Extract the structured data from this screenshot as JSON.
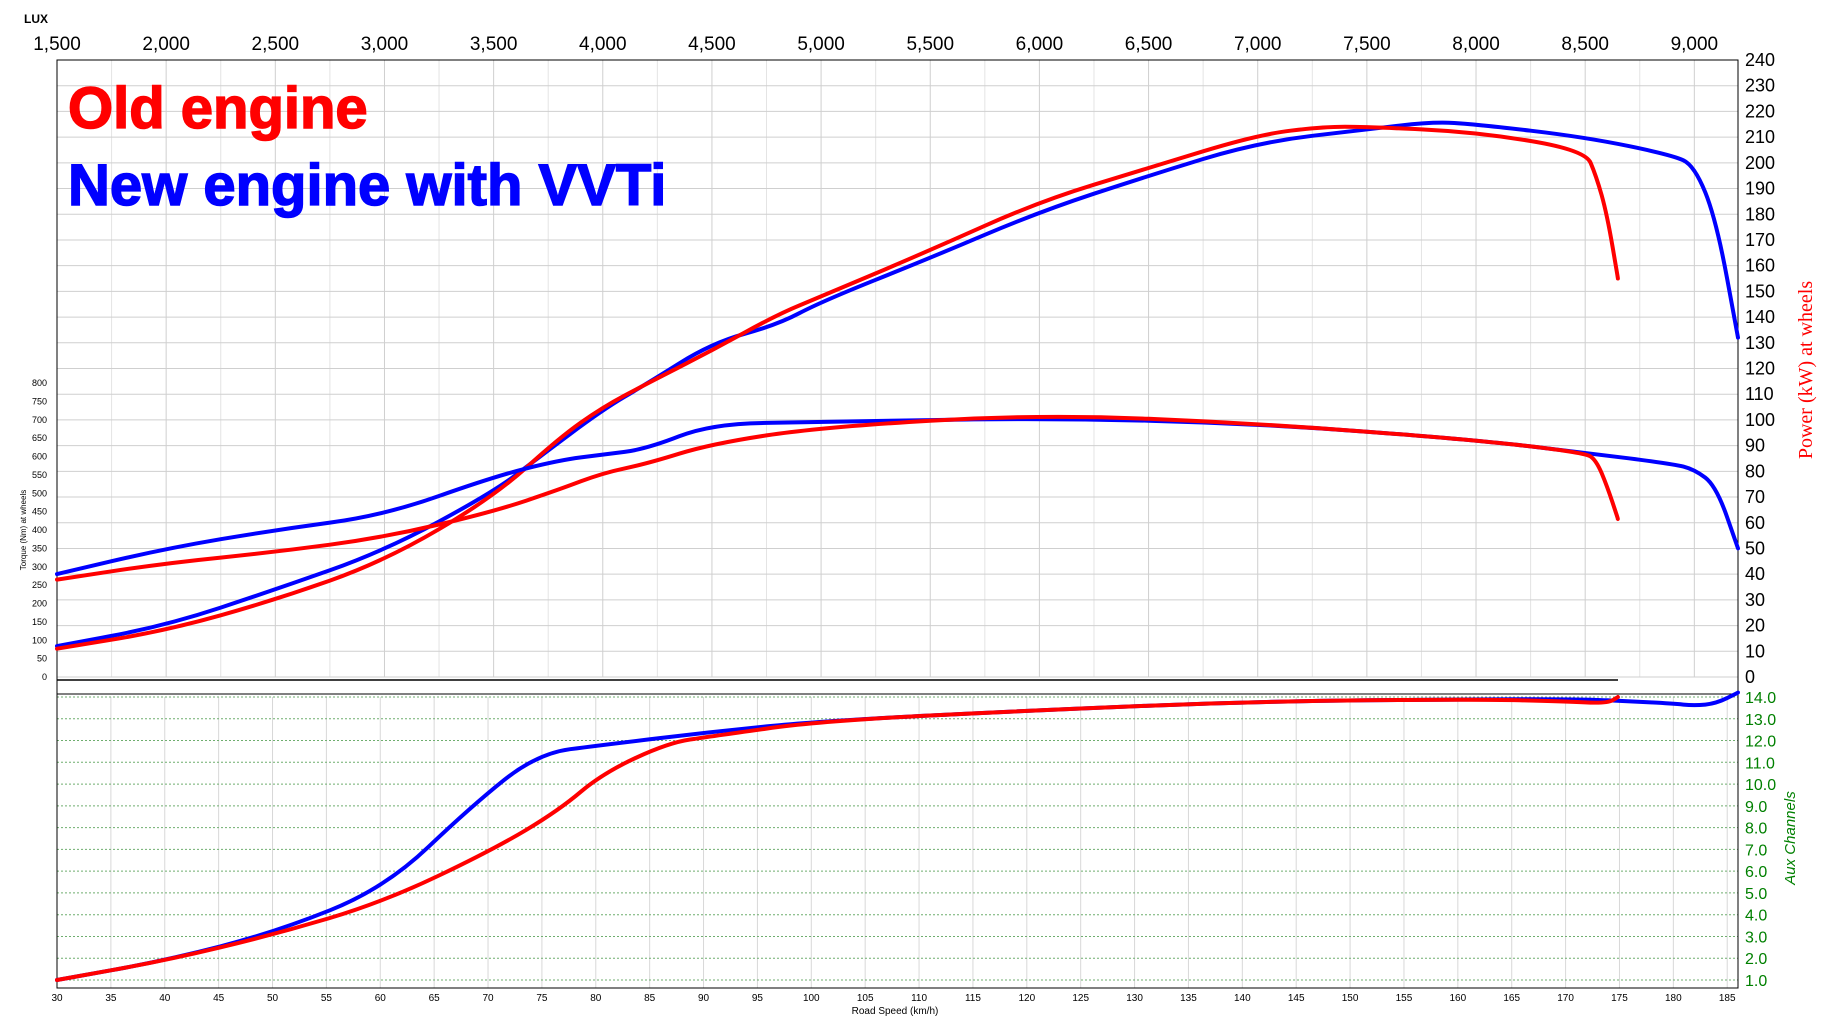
{
  "header": {
    "brand": "LUX"
  },
  "legend": {
    "old_label": "Old engine",
    "new_label": "New engine with VVTi",
    "old_color": "#ff0000",
    "new_color": "#0000ff"
  },
  "axes": {
    "rpm": {
      "min": 1500,
      "max": 9200,
      "ticks": [
        "1,500",
        "2,000",
        "2,500",
        "3,000",
        "3,500",
        "4,000",
        "4,500",
        "5,000",
        "5,500",
        "6,000",
        "6,500",
        "7,000",
        "7,500",
        "8,000",
        "8,500",
        "9,000"
      ]
    },
    "road_speed": {
      "label": "Road Speed (km/h)",
      "min": 30,
      "max": 186,
      "ticks": [
        "30",
        "35",
        "40",
        "45",
        "50",
        "55",
        "60",
        "65",
        "70",
        "75",
        "80",
        "85",
        "90",
        "95",
        "100",
        "105",
        "110",
        "115",
        "120",
        "125",
        "130",
        "135",
        "140",
        "145",
        "150",
        "155",
        "160",
        "165",
        "170",
        "175",
        "180",
        "185"
      ]
    },
    "power": {
      "label": "Power (kW) at wheels",
      "min": 0,
      "max": 240,
      "ticks": [
        "0",
        "10",
        "20",
        "30",
        "40",
        "50",
        "60",
        "70",
        "80",
        "90",
        "100",
        "110",
        "120",
        "130",
        "140",
        "150",
        "160",
        "170",
        "180",
        "190",
        "200",
        "210",
        "220",
        "230",
        "240"
      ],
      "color": "#ff0000"
    },
    "torque": {
      "label": "Torque (Nm) at wheels",
      "min": 0,
      "max": 800,
      "ticks": [
        "0",
        "50",
        "100",
        "150",
        "200",
        "250",
        "300",
        "350",
        "400",
        "450",
        "500",
        "550",
        "600",
        "650",
        "700",
        "750",
        "800"
      ]
    },
    "aux": {
      "label": "Aux Channels",
      "min": 1.0,
      "max": 14.0,
      "ticks": [
        "1.0",
        "2.0",
        "3.0",
        "4.0",
        "5.0",
        "6.0",
        "7.0",
        "8.0",
        "9.0",
        "10.0",
        "11.0",
        "12.0",
        "13.0",
        "14.0"
      ],
      "color": "#008000"
    }
  },
  "chart_data": {
    "type": "line",
    "grid": true,
    "legend_placement": "top-left",
    "series": [
      {
        "name": "New engine with VVTi",
        "quantity": "power",
        "color": "#0000ff",
        "x": [
          1500,
          2000,
          2500,
          3000,
          3500,
          3700,
          4000,
          4200,
          4500,
          4800,
          5000,
          5500,
          6000,
          6500,
          7000,
          7500,
          7800,
          8000,
          8500,
          8900,
          9000,
          9100,
          9200
        ],
        "y": [
          12,
          20,
          34,
          49,
          72,
          85,
          104,
          114,
          130,
          137,
          146,
          163,
          181,
          195,
          208,
          213,
          216,
          215,
          210,
          203,
          199,
          178,
          132
        ]
      },
      {
        "name": "Old engine",
        "quantity": "power",
        "color": "#ff0000",
        "x": [
          1500,
          2000,
          2500,
          3000,
          3500,
          3800,
          4000,
          4200,
          4500,
          4800,
          5000,
          5500,
          6000,
          6500,
          7000,
          7300,
          7500,
          8000,
          8500,
          8550,
          8600,
          8650
        ],
        "y": [
          11,
          18,
          30,
          45,
          70,
          93,
          105,
          114,
          127,
          141,
          148,
          166,
          185,
          198,
          211,
          214,
          214,
          212,
          205,
          195,
          180,
          155
        ]
      },
      {
        "name": "New engine with VVTi",
        "quantity": "torque",
        "color": "#0000ff",
        "x": [
          1500,
          2000,
          2500,
          3000,
          3500,
          3800,
          4000,
          4200,
          4500,
          5000,
          6000,
          7000,
          8000,
          8500,
          8900,
          9000,
          9100,
          9200
        ],
        "y": [
          280,
          350,
          400,
          440,
          545,
          590,
          605,
          620,
          690,
          693,
          705,
          690,
          645,
          610,
          580,
          565,
          520,
          350
        ]
      },
      {
        "name": "Old engine",
        "quantity": "torque",
        "color": "#ff0000",
        "x": [
          1500,
          2000,
          2500,
          3000,
          3500,
          3800,
          4000,
          4200,
          4500,
          5000,
          6000,
          7000,
          8000,
          8500,
          8550,
          8600,
          8650
        ],
        "y": [
          265,
          310,
          340,
          380,
          450,
          510,
          555,
          580,
          635,
          680,
          715,
          690,
          645,
          610,
          590,
          520,
          430
        ]
      },
      {
        "name": "New engine with VVTi",
        "quantity": "aux",
        "color": "#0000ff",
        "x": [
          1500,
          2000,
          2500,
          3000,
          3400,
          3700,
          4000,
          4500,
          5000,
          6000,
          7000,
          8000,
          8500,
          8700,
          8900,
          9000,
          9100,
          9200
        ],
        "y": [
          1.0,
          1.9,
          3.2,
          5.2,
          9.0,
          11.4,
          11.8,
          12.4,
          12.9,
          13.4,
          13.8,
          13.9,
          13.9,
          13.8,
          13.7,
          13.6,
          13.7,
          14.2
        ]
      },
      {
        "name": "Old engine",
        "quantity": "aux",
        "color": "#ff0000",
        "x": [
          1500,
          2000,
          2500,
          3000,
          3500,
          3800,
          4000,
          4300,
          4500,
          5000,
          6000,
          7000,
          8000,
          8400,
          8600,
          8650
        ],
        "y": [
          1.0,
          1.9,
          3.1,
          4.6,
          7.0,
          8.8,
          10.5,
          11.9,
          12.2,
          12.9,
          13.4,
          13.8,
          13.9,
          13.8,
          13.7,
          14.0
        ]
      }
    ]
  }
}
